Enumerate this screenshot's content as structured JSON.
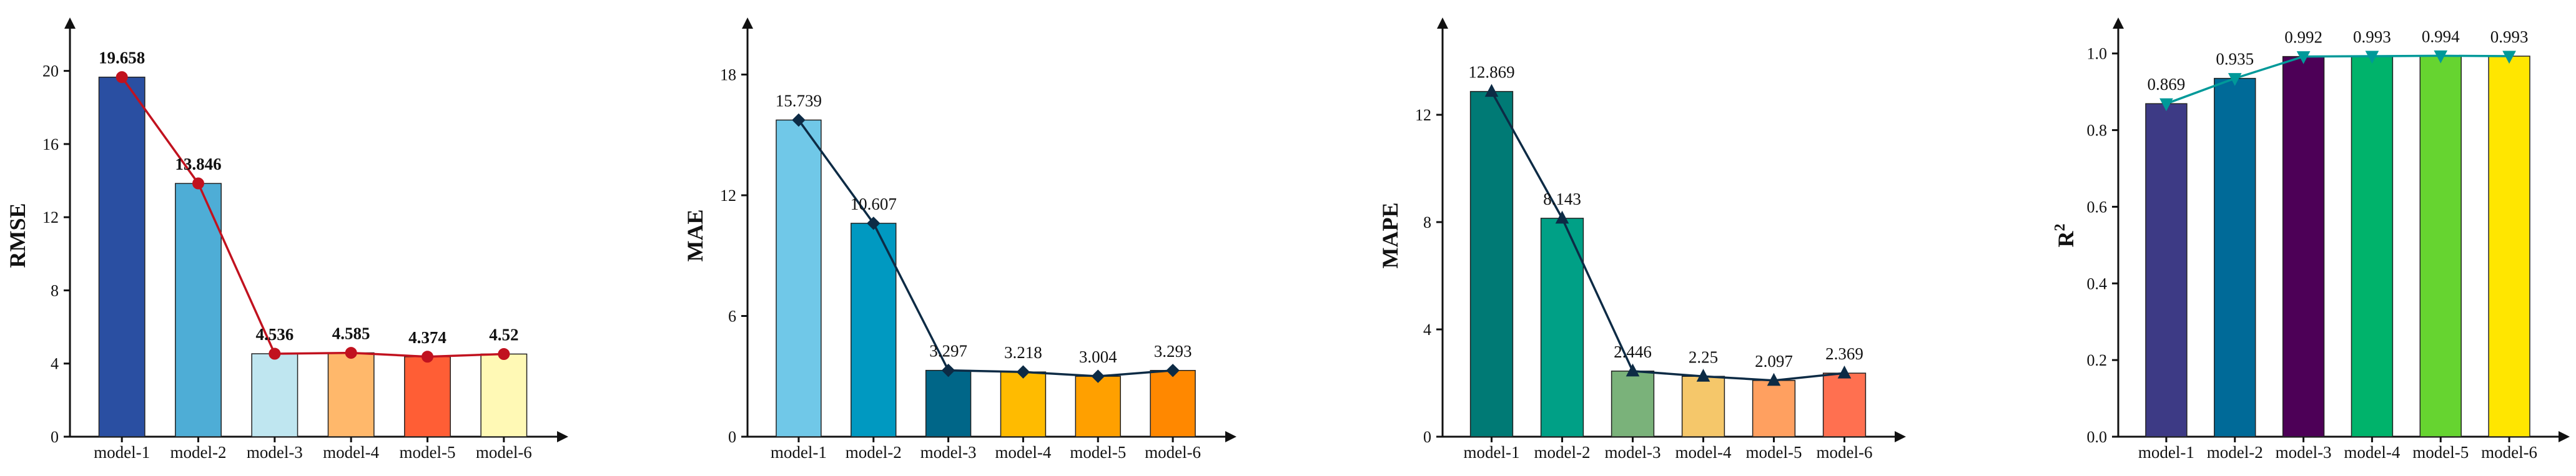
{
  "chart_data": [
    {
      "type": "bar",
      "categories": [
        "model-1",
        "model-2",
        "model-3",
        "model-4",
        "model-5",
        "model-6"
      ],
      "values": [
        19.658,
        13.846,
        4.536,
        4.585,
        4.374,
        4.52
      ],
      "value_labels": [
        "19.658",
        "13.846",
        "4.536",
        "4.585",
        "4.374",
        "4.52"
      ],
      "ylabel": "RMSE",
      "ylabel_sup": "",
      "ylim": [
        0,
        22
      ],
      "yticks": [
        0,
        4,
        8,
        12,
        16,
        20
      ],
      "ytick_labels": [
        "0",
        "4",
        "8",
        "12",
        "16",
        "20"
      ],
      "bar_colors": [
        "#2a4fa2",
        "#4eadd6",
        "#bfe6f0",
        "#ffb86b",
        "#ff5e35",
        "#fff9b5"
      ],
      "overlay_line": true,
      "line_color": "#c1121f",
      "marker": "circle",
      "labels_bold": true
    },
    {
      "type": "bar",
      "categories": [
        "model-1",
        "model-2",
        "model-3",
        "model-4",
        "model-5",
        "model-6"
      ],
      "values": [
        15.739,
        10.607,
        3.297,
        3.218,
        3.004,
        3.293
      ],
      "value_labels": [
        "15.739",
        "10.607",
        "3.297",
        "3.218",
        "3.004",
        "3.293"
      ],
      "ylabel": "MAE",
      "ylabel_sup": "",
      "ylim": [
        0,
        20
      ],
      "yticks": [
        0,
        6,
        12,
        18
      ],
      "ytick_labels": [
        "0",
        "6",
        "12",
        "18"
      ],
      "bar_colors": [
        "#70c8e8",
        "#0099c1",
        "#006688",
        "#ffbb00",
        "#ffa000",
        "#ff8800"
      ],
      "overlay_line": true,
      "line_color": "#0d2b45",
      "marker": "diamond",
      "labels_bold": false
    },
    {
      "type": "bar",
      "categories": [
        "model-1",
        "model-2",
        "model-3",
        "model-4",
        "model-5",
        "model-6"
      ],
      "values": [
        12.869,
        8.143,
        2.446,
        2.25,
        2.097,
        2.369
      ],
      "value_labels": [
        "12.869",
        "8.143",
        "2.446",
        "2.25",
        "2.097",
        "2.369"
      ],
      "ylabel": "MAPE",
      "ylabel_sup": "",
      "ylim": [
        0,
        15
      ],
      "yticks": [
        0,
        4,
        8,
        12
      ],
      "ytick_labels": [
        "0",
        "4",
        "8",
        "12"
      ],
      "bar_colors": [
        "#007a75",
        "#00a086",
        "#7ab27a",
        "#f5c76a",
        "#ffa060",
        "#ff7050"
      ],
      "overlay_line": true,
      "line_color": "#0d2b45",
      "marker": "triangle",
      "labels_bold": false
    },
    {
      "type": "bar",
      "categories": [
        "model-1",
        "model-2",
        "model-3",
        "model-4",
        "model-5",
        "model-6"
      ],
      "values": [
        0.869,
        0.935,
        0.992,
        0.993,
        0.994,
        0.993
      ],
      "value_labels": [
        "0.869",
        "0.935",
        "0.992",
        "0.993",
        "0.994",
        "0.993"
      ],
      "ylabel": "R",
      "ylabel_sup": "2",
      "ylim": [
        0,
        1.05
      ],
      "yticks": [
        0,
        0.2,
        0.4,
        0.6,
        0.8,
        1.0
      ],
      "ytick_labels": [
        "0.0",
        "0.2",
        "0.4",
        "0.6",
        "0.8",
        "1.0"
      ],
      "bar_colors": [
        "#3d3a85",
        "#006a98",
        "#4d0057",
        "#00b36b",
        "#66d430",
        "#ffe600"
      ],
      "overlay_line": true,
      "line_color": "#009999",
      "marker": "triangle-down",
      "labels_bold": false
    }
  ]
}
